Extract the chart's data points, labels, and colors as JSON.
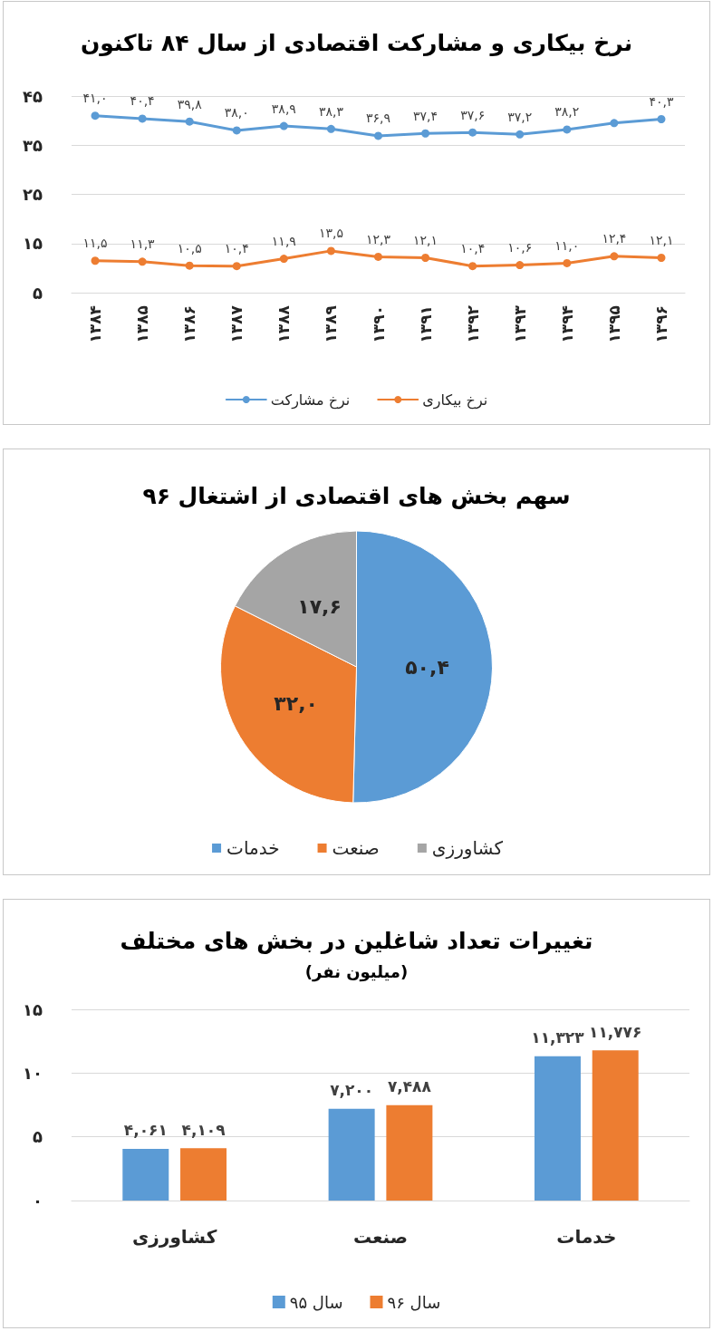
{
  "chart_data": [
    {
      "type": "line",
      "title": "نرخ بیکاری و مشارکت اقتصادی از سال ۸۴ تاکنون",
      "categories": [
        "۱۳۸۴",
        "۱۳۸۵",
        "۱۳۸۶",
        "۱۳۸۷",
        "۱۳۸۸",
        "۱۳۸۹",
        "۱۳۹۰",
        "۱۳۹۱",
        "۱۳۹۲",
        "۱۳۹۳",
        "۱۳۹۴",
        "۱۳۹۵",
        "۱۳۹۶"
      ],
      "series": [
        {
          "name": "نرخ مشارکت",
          "color": "#5b9bd5",
          "values": [
            41.0,
            40.4,
            39.8,
            38.0,
            38.9,
            38.3,
            36.9,
            37.4,
            37.6,
            37.2,
            38.2,
            39.5,
            40.3
          ],
          "value_labels": [
            "۴۱,۰",
            "۴۰,۴",
            "۳۹,۸",
            "۳۸,۰",
            "۳۸,۹",
            "۳۸,۳",
            "۳۶,۹",
            "۳۷,۴",
            "۳۷,۶",
            "۳۷,۲",
            "۳۸,۲",
            null,
            "۴۰,۳"
          ]
        },
        {
          "name": "نرخ بیکاری",
          "color": "#ed7d31",
          "values": [
            11.5,
            11.3,
            10.5,
            10.4,
            11.9,
            13.5,
            12.3,
            12.1,
            10.4,
            10.6,
            11.0,
            12.4,
            12.1
          ],
          "value_labels": [
            "۱۱,۵",
            "۱۱,۳",
            "۱۰,۵",
            "۱۰,۴",
            "۱۱,۹",
            "۱۳,۵",
            "۱۲,۳",
            "۱۲,۱",
            "۱۰,۴",
            "۱۰,۶",
            "۱۱,۰",
            "۱۲,۴",
            "۱۲,۱"
          ]
        }
      ],
      "ylim": [
        5,
        45
      ],
      "yticks": [
        {
          "value": 5,
          "label": "۵"
        },
        {
          "value": 15,
          "label": "۱۵"
        },
        {
          "value": 25,
          "label": "۲۵"
        },
        {
          "value": 35,
          "label": "۳۵"
        },
        {
          "value": 45,
          "label": "۴۵"
        }
      ],
      "grid": "y",
      "legend": "bottom",
      "marker": "circle"
    },
    {
      "type": "pie",
      "title": "سهم بخش های اقتصادی از اشتغال ۹۶",
      "categories": [
        "خدمات",
        "صنعت",
        "کشاورزی"
      ],
      "values": [
        50.4,
        32.0,
        17.6
      ],
      "colors": [
        "#5b9bd5",
        "#ed7d31",
        "#a5a5a5"
      ],
      "value_labels": [
        "۵۰,۴",
        "۳۲,۰",
        "۱۷,۶"
      ],
      "legend": "bottom"
    },
    {
      "type": "bar",
      "title": "تغییرات تعداد شاغلین در بخش های مختلف",
      "subtitle": "(میلیون نفر)",
      "categories": [
        "کشاورزی",
        "صنعت",
        "خدمات"
      ],
      "series": [
        {
          "name": "سال ۹۵",
          "color": "#5b9bd5",
          "values": [
            4.061,
            7.2,
            11.323
          ],
          "value_labels": [
            "۴,۰۶۱",
            "۷,۲۰۰",
            "۱۱,۳۲۳"
          ]
        },
        {
          "name": "سال ۹۶",
          "color": "#ed7d31",
          "values": [
            4.109,
            7.488,
            11.776
          ],
          "value_labels": [
            "۴,۱۰۹",
            "۷,۴۸۸",
            "۱۱,۷۷۶"
          ]
        }
      ],
      "ylim": [
        0,
        15
      ],
      "yticks": [
        {
          "value": 0,
          "label": "۰"
        },
        {
          "value": 5,
          "label": "۵"
        },
        {
          "value": 10,
          "label": "۱۰"
        },
        {
          "value": 15,
          "label": "۱۵"
        }
      ],
      "grid": "y",
      "legend": "bottom"
    }
  ]
}
